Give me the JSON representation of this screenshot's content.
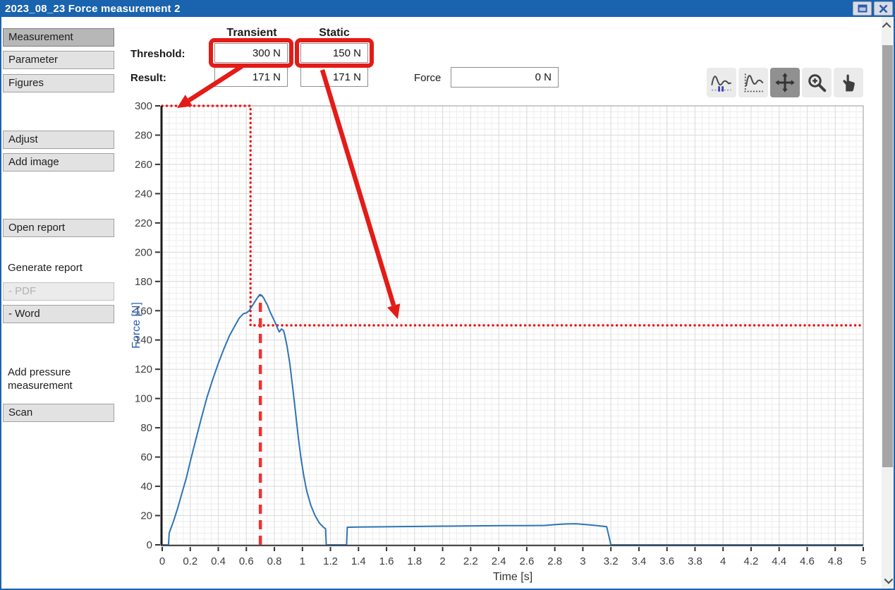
{
  "window": {
    "title": "2023_08_23 Force measurement 2"
  },
  "colors": {
    "titlebar": "#1a63ae",
    "accent_red": "#e41b17",
    "curve_blue": "#2e74b5",
    "axis_label_blue": "#2a5caa"
  },
  "sidebar": {
    "items": [
      {
        "label": "Measurement",
        "type": "button",
        "selected": true
      },
      {
        "label": "Parameter",
        "type": "button"
      },
      {
        "label": "Figures",
        "type": "button"
      },
      {
        "label": "Adjust",
        "type": "button"
      },
      {
        "label": "Add image",
        "type": "button"
      },
      {
        "label": "Open report",
        "type": "button"
      },
      {
        "label": "Generate report",
        "type": "label"
      },
      {
        "label": "- PDF",
        "type": "button",
        "disabled": true
      },
      {
        "label": "- Word",
        "type": "button"
      },
      {
        "label": "Add pressure measurement",
        "type": "label"
      },
      {
        "label": "Scan",
        "type": "button"
      }
    ]
  },
  "controls": {
    "column_transient": "Transient",
    "column_static": "Static",
    "threshold_label": "Threshold:",
    "result_label": "Result:",
    "threshold_transient_value": "300 N",
    "threshold_static_value": "150 N",
    "result_transient_value": "171 N",
    "result_static_value": "171 N",
    "force_label": "Force",
    "force_value": "0 N"
  },
  "toolbar": {
    "buttons": [
      {
        "icon": "pause-curves-icon",
        "selected": false
      },
      {
        "icon": "autoscale-curve-icon",
        "selected": false
      },
      {
        "icon": "pan-icon",
        "selected": true
      },
      {
        "icon": "zoom-in-icon",
        "selected": false
      },
      {
        "icon": "hand-icon",
        "selected": false
      }
    ]
  },
  "chart_data": {
    "type": "line",
    "title": "",
    "xlabel": "Time [s]",
    "ylabel": "Force [N]",
    "xlim": [
      0,
      5
    ],
    "ylim": [
      0,
      300
    ],
    "grid": true,
    "x_minor_step": 0.05,
    "y_minor_step": 4,
    "x_tick_values": [
      0,
      0.2,
      0.4,
      0.6,
      0.8,
      1,
      1.2,
      1.4,
      1.6,
      1.8,
      2,
      2.2,
      2.4,
      2.6,
      2.8,
      3,
      3.2,
      3.4,
      3.6,
      3.8,
      4,
      4.2,
      4.4,
      4.6,
      4.8,
      5
    ],
    "x_tick_labels": [
      "0",
      "0.2",
      "0.4",
      "0.6",
      "0.8",
      "1",
      "1.2",
      "1.4",
      "1.6",
      "1.8",
      "2",
      "2.2",
      "2.4",
      "2.6",
      "2.8",
      "3",
      "3.2",
      "3.4",
      "3.6",
      "3.8",
      "4",
      "4.2",
      "4.4",
      "4.6",
      "4.8",
      "5"
    ],
    "y_tick_values": [
      0,
      20,
      40,
      60,
      80,
      100,
      120,
      140,
      160,
      180,
      200,
      220,
      240,
      260,
      280,
      300
    ],
    "y_tick_labels": [
      "0",
      "20",
      "40",
      "60",
      "80",
      "100",
      "120",
      "140",
      "160",
      "180",
      "200",
      "220",
      "240",
      "260",
      "280",
      "300"
    ],
    "series": [
      {
        "name": "Force",
        "color": "#2e74b5",
        "points": [
          [
            0,
            0
          ],
          [
            0.045,
            0
          ],
          [
            0.05,
            8
          ],
          [
            0.08,
            16
          ],
          [
            0.11,
            25
          ],
          [
            0.14,
            35
          ],
          [
            0.17,
            45
          ],
          [
            0.2,
            57
          ],
          [
            0.24,
            72
          ],
          [
            0.28,
            87
          ],
          [
            0.32,
            101
          ],
          [
            0.36,
            113
          ],
          [
            0.4,
            124
          ],
          [
            0.44,
            134
          ],
          [
            0.48,
            143
          ],
          [
            0.52,
            150
          ],
          [
            0.55,
            155
          ],
          [
            0.58,
            158
          ],
          [
            0.6,
            158.5
          ],
          [
            0.62,
            160
          ],
          [
            0.64,
            163
          ],
          [
            0.66,
            166
          ],
          [
            0.68,
            169
          ],
          [
            0.695,
            171
          ],
          [
            0.71,
            170.5
          ],
          [
            0.725,
            168.5
          ],
          [
            0.735,
            166.5
          ],
          [
            0.75,
            164
          ],
          [
            0.77,
            159
          ],
          [
            0.79,
            155
          ],
          [
            0.81,
            151
          ],
          [
            0.825,
            147.5
          ],
          [
            0.835,
            145.5
          ],
          [
            0.85,
            147.5
          ],
          [
            0.865,
            146.5
          ],
          [
            0.875,
            143
          ],
          [
            0.89,
            136
          ],
          [
            0.91,
            124
          ],
          [
            0.93,
            108
          ],
          [
            0.95,
            91
          ],
          [
            0.97,
            74
          ],
          [
            0.99,
            59
          ],
          [
            1.01,
            47
          ],
          [
            1.03,
            37
          ],
          [
            1.06,
            27
          ],
          [
            1.09,
            20
          ],
          [
            1.12,
            15
          ],
          [
            1.15,
            12
          ],
          [
            1.165,
            11
          ],
          [
            1.17,
            0
          ],
          [
            1.315,
            0
          ],
          [
            1.32,
            12
          ],
          [
            1.4,
            12.2
          ],
          [
            1.55,
            12.3
          ],
          [
            1.7,
            12.5
          ],
          [
            1.85,
            12.6
          ],
          [
            2,
            12.8
          ],
          [
            2.15,
            12.9
          ],
          [
            2.3,
            13
          ],
          [
            2.45,
            13.1
          ],
          [
            2.6,
            13.1
          ],
          [
            2.72,
            13.2
          ],
          [
            2.8,
            13.8
          ],
          [
            2.88,
            14.3
          ],
          [
            2.95,
            14.4
          ],
          [
            3.02,
            13.9
          ],
          [
            3.1,
            13.1
          ],
          [
            3.17,
            12.4
          ],
          [
            3.2,
            0
          ],
          [
            5,
            0
          ]
        ]
      }
    ],
    "threshold_line": {
      "name": "threshold-profile",
      "color": "#f01414",
      "style": "dotted",
      "points": [
        [
          0,
          300
        ],
        [
          0.63,
          300
        ],
        [
          0.63,
          150
        ],
        [
          5,
          150
        ]
      ]
    },
    "peak_marker": {
      "name": "peak-time-marker",
      "color": "#f23030",
      "style": "dashed",
      "x": 0.7,
      "y_from": 0,
      "y_to": 171
    }
  },
  "annotations": {
    "color": "#e41b17",
    "arrows": [
      {
        "name": "transient-threshold-arrow",
        "from": [
          341,
          92
        ],
        "to": [
          249,
          151
        ]
      },
      {
        "name": "static-threshold-arrow",
        "from": [
          455,
          97
        ],
        "to": [
          562,
          450
        ]
      }
    ]
  }
}
